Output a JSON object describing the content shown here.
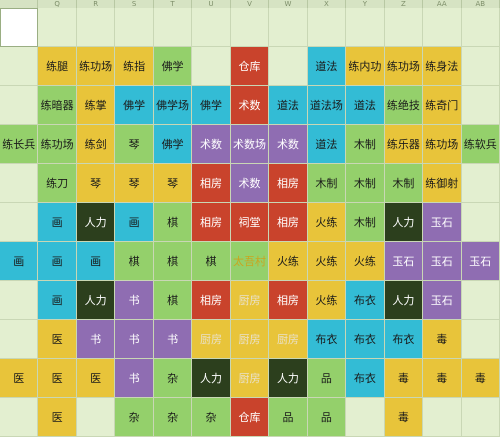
{
  "header": {
    "columns": [
      "",
      "Q",
      "R",
      "S",
      "T",
      "U",
      "V",
      "W",
      "X",
      "Y",
      "Z",
      "AA",
      "AB"
    ]
  },
  "colors": {
    "y": "#e8c43a",
    "g": "#94d06b",
    "b": "#33bcd5",
    "p": "#8f6db2",
    "r": "#c9432c",
    "d": "#2c3f1d",
    "k": "#e3efd0"
  },
  "rows": [
    [
      {
        "t": "",
        "c": "k"
      },
      {
        "t": "",
        "c": "k"
      },
      {
        "t": "",
        "c": "k"
      },
      {
        "t": "",
        "c": "k"
      },
      {
        "t": "",
        "c": "k"
      },
      {
        "t": "",
        "c": "k"
      },
      {
        "t": "",
        "c": "k"
      },
      {
        "t": "",
        "c": "k"
      },
      {
        "t": "",
        "c": "k"
      },
      {
        "t": "",
        "c": "k"
      },
      {
        "t": "",
        "c": "k"
      },
      {
        "t": "",
        "c": "k"
      },
      {
        "t": "",
        "c": "k"
      }
    ],
    [
      {
        "t": "",
        "c": "k"
      },
      {
        "t": "练腿",
        "c": "y"
      },
      {
        "t": "练功场",
        "c": "y"
      },
      {
        "t": "练指",
        "c": "y"
      },
      {
        "t": "佛学",
        "c": "g"
      },
      {
        "t": "",
        "c": "k"
      },
      {
        "t": "仓库",
        "c": "r"
      },
      {
        "t": "",
        "c": "k"
      },
      {
        "t": "道法",
        "c": "b"
      },
      {
        "t": "练内功",
        "c": "y"
      },
      {
        "t": "练功场",
        "c": "y"
      },
      {
        "t": "练身法",
        "c": "y"
      },
      {
        "t": "",
        "c": "k"
      }
    ],
    [
      {
        "t": "",
        "c": "k"
      },
      {
        "t": "练暗器",
        "c": "g"
      },
      {
        "t": "练掌",
        "c": "y"
      },
      {
        "t": "佛学",
        "c": "b"
      },
      {
        "t": "佛学场",
        "c": "b"
      },
      {
        "t": "佛学",
        "c": "b"
      },
      {
        "t": "术数",
        "c": "r"
      },
      {
        "t": "道法",
        "c": "b"
      },
      {
        "t": "道法场",
        "c": "b"
      },
      {
        "t": "道法",
        "c": "b"
      },
      {
        "t": "练绝技",
        "c": "g"
      },
      {
        "t": "练奇门",
        "c": "y"
      },
      {
        "t": "",
        "c": "k"
      }
    ],
    [
      {
        "t": "练长兵",
        "c": "g"
      },
      {
        "t": "练功场",
        "c": "g"
      },
      {
        "t": "练剑",
        "c": "y"
      },
      {
        "t": "琴",
        "c": "g"
      },
      {
        "t": "佛学",
        "c": "b"
      },
      {
        "t": "术数",
        "c": "p"
      },
      {
        "t": "术数场",
        "c": "p"
      },
      {
        "t": "术数",
        "c": "p"
      },
      {
        "t": "道法",
        "c": "b"
      },
      {
        "t": "木制",
        "c": "g"
      },
      {
        "t": "练乐器",
        "c": "y"
      },
      {
        "t": "练功场",
        "c": "y"
      },
      {
        "t": "练软兵",
        "c": "g"
      }
    ],
    [
      {
        "t": "",
        "c": "k"
      },
      {
        "t": "练刀",
        "c": "g"
      },
      {
        "t": "琴",
        "c": "y"
      },
      {
        "t": "琴",
        "c": "y"
      },
      {
        "t": "琴",
        "c": "y"
      },
      {
        "t": "相房",
        "c": "r"
      },
      {
        "t": "术数",
        "c": "p"
      },
      {
        "t": "相房",
        "c": "r"
      },
      {
        "t": "木制",
        "c": "g"
      },
      {
        "t": "木制",
        "c": "g"
      },
      {
        "t": "木制",
        "c": "g"
      },
      {
        "t": "练御射",
        "c": "y"
      },
      {
        "t": "",
        "c": "k"
      }
    ],
    [
      {
        "t": "",
        "c": "k"
      },
      {
        "t": "画",
        "c": "b"
      },
      {
        "t": "人力",
        "c": "d"
      },
      {
        "t": "画",
        "c": "b"
      },
      {
        "t": "棋",
        "c": "g"
      },
      {
        "t": "相房",
        "c": "r"
      },
      {
        "t": "祠堂",
        "c": "r"
      },
      {
        "t": "相房",
        "c": "r"
      },
      {
        "t": "火练",
        "c": "y"
      },
      {
        "t": "木制",
        "c": "g"
      },
      {
        "t": "人力",
        "c": "d"
      },
      {
        "t": "玉石",
        "c": "p"
      },
      {
        "t": "",
        "c": "k"
      }
    ],
    [
      {
        "t": "画",
        "c": "b"
      },
      {
        "t": "画",
        "c": "b"
      },
      {
        "t": "画",
        "c": "b"
      },
      {
        "t": "棋",
        "c": "g"
      },
      {
        "t": "棋",
        "c": "g"
      },
      {
        "t": "棋",
        "c": "g"
      },
      {
        "t": "太吾村",
        "c": "g"
      },
      {
        "t": "火练",
        "c": "y"
      },
      {
        "t": "火练",
        "c": "y"
      },
      {
        "t": "火练",
        "c": "y"
      },
      {
        "t": "玉石",
        "c": "p"
      },
      {
        "t": "玉石",
        "c": "p"
      },
      {
        "t": "玉石",
        "c": "p"
      }
    ],
    [
      {
        "t": "",
        "c": "k"
      },
      {
        "t": "画",
        "c": "b"
      },
      {
        "t": "人力",
        "c": "d"
      },
      {
        "t": "书",
        "c": "p"
      },
      {
        "t": "棋",
        "c": "g"
      },
      {
        "t": "相房",
        "c": "r"
      },
      {
        "t": "厨房",
        "c": "y"
      },
      {
        "t": "相房",
        "c": "r"
      },
      {
        "t": "火练",
        "c": "y"
      },
      {
        "t": "布衣",
        "c": "b"
      },
      {
        "t": "人力",
        "c": "d"
      },
      {
        "t": "玉石",
        "c": "p"
      },
      {
        "t": "",
        "c": "k"
      }
    ],
    [
      {
        "t": "",
        "c": "k"
      },
      {
        "t": "医",
        "c": "y"
      },
      {
        "t": "书",
        "c": "p"
      },
      {
        "t": "书",
        "c": "p"
      },
      {
        "t": "书",
        "c": "p"
      },
      {
        "t": "厨房",
        "c": "y"
      },
      {
        "t": "厨房",
        "c": "y"
      },
      {
        "t": "厨房",
        "c": "y"
      },
      {
        "t": "布衣",
        "c": "b"
      },
      {
        "t": "布衣",
        "c": "b"
      },
      {
        "t": "布衣",
        "c": "b"
      },
      {
        "t": "毒",
        "c": "y"
      },
      {
        "t": "",
        "c": "k"
      }
    ],
    [
      {
        "t": "医",
        "c": "y"
      },
      {
        "t": "医",
        "c": "y"
      },
      {
        "t": "医",
        "c": "y"
      },
      {
        "t": "书",
        "c": "p"
      },
      {
        "t": "杂",
        "c": "g"
      },
      {
        "t": "人力",
        "c": "d"
      },
      {
        "t": "厨房",
        "c": "y"
      },
      {
        "t": "人力",
        "c": "d"
      },
      {
        "t": "品",
        "c": "g"
      },
      {
        "t": "布衣",
        "c": "b"
      },
      {
        "t": "毒",
        "c": "y"
      },
      {
        "t": "毒",
        "c": "y"
      },
      {
        "t": "毒",
        "c": "y"
      }
    ],
    [
      {
        "t": "",
        "c": "k"
      },
      {
        "t": "医",
        "c": "y"
      },
      {
        "t": "",
        "c": "k"
      },
      {
        "t": "杂",
        "c": "g"
      },
      {
        "t": "杂",
        "c": "g"
      },
      {
        "t": "杂",
        "c": "g"
      },
      {
        "t": "仓库",
        "c": "r"
      },
      {
        "t": "品",
        "c": "g"
      },
      {
        "t": "品",
        "c": "g"
      },
      {
        "t": "",
        "c": "k"
      },
      {
        "t": "毒",
        "c": "y"
      },
      {
        "t": "",
        "c": "k"
      },
      {
        "t": "",
        "c": "k"
      }
    ]
  ]
}
